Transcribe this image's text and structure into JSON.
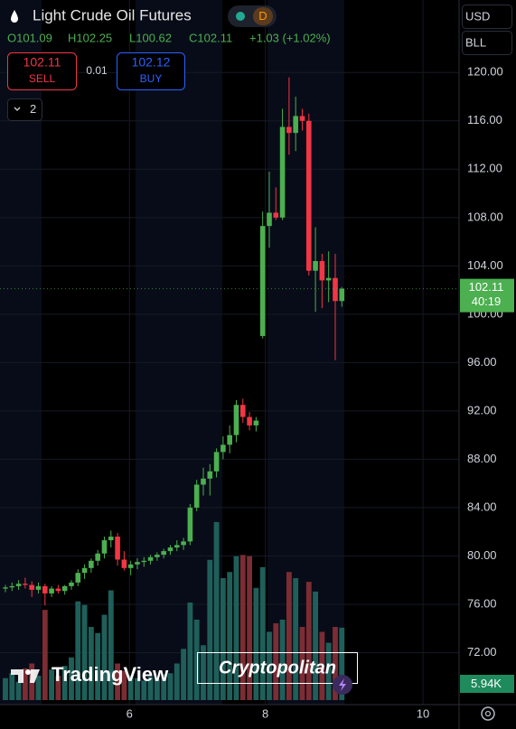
{
  "header": {
    "title": "Light Crude Oil Futures",
    "interval": "D",
    "ohlc": [
      "O101.09",
      "H102.25",
      "L100.62",
      "C102.11"
    ],
    "change": "+1.03 (+1.02%)"
  },
  "trade": {
    "sell_price": "102.11",
    "sell": "SELL",
    "spread": "0.01",
    "buy_price": "102.12",
    "buy": "BUY",
    "quantity": "2"
  },
  "axis": {
    "currency": "USD",
    "unit": "BLL",
    "countdown": "40:19"
  },
  "watermarks": [
    "TradingView",
    "Cryptopolitan"
  ],
  "chart_data": {
    "type": "candlestick",
    "up_color": "#4caf50",
    "down_color": "#f23645",
    "open": [
      77.3,
      77.4,
      77.5,
      77.7,
      77.6,
      77.2,
      77.5,
      76.9,
      77.3,
      77.1,
      77.5,
      77.8,
      78.6,
      79.0,
      79.6,
      80.2,
      81.3,
      81.6,
      79.7,
      79.0,
      79.3,
      79.5,
      79.6,
      79.9,
      80.1,
      80.4,
      80.7,
      80.9,
      81.2,
      84.0,
      85.9,
      86.4,
      87.0,
      88.6,
      89.2,
      90.0,
      92.5,
      91.5,
      90.8,
      98.2,
      107.3,
      108.4,
      108.0,
      115.5,
      115.0,
      116.4,
      116.0,
      103.6,
      104.4,
      102.8,
      103.0,
      101.09
    ],
    "high": [
      77.6,
      77.8,
      78.0,
      78.2,
      77.9,
      77.8,
      77.7,
      77.5,
      77.6,
      77.6,
      78.0,
      78.9,
      79.3,
      79.8,
      80.5,
      81.6,
      82.1,
      81.9,
      80.4,
      79.6,
      79.8,
      79.9,
      80.1,
      80.3,
      80.6,
      80.9,
      81.3,
      81.5,
      84.3,
      86.3,
      87.3,
      87.6,
      88.9,
      89.9,
      90.8,
      92.9,
      93.0,
      91.9,
      91.5,
      108.5,
      111.8,
      110.5,
      117.0,
      119.6,
      118.0,
      117.0,
      116.6,
      107.2,
      105.0,
      105.2,
      105.0,
      102.25
    ],
    "low": [
      77.0,
      77.1,
      77.2,
      77.3,
      76.6,
      76.9,
      75.9,
      76.6,
      76.9,
      76.8,
      77.2,
      77.5,
      78.1,
      78.6,
      79.2,
      79.8,
      80.7,
      79.2,
      78.8,
      78.4,
      78.9,
      79.1,
      79.3,
      79.6,
      79.8,
      80.1,
      80.4,
      80.5,
      80.9,
      83.7,
      85.0,
      85.0,
      86.5,
      88.0,
      88.5,
      89.4,
      91.0,
      90.4,
      90.3,
      98.0,
      105.5,
      107.8,
      107.8,
      113.2,
      113.5,
      115.2,
      103.2,
      100.2,
      100.5,
      101.0,
      96.2,
      100.62
    ],
    "close": [
      77.4,
      77.5,
      77.7,
      77.6,
      77.2,
      77.5,
      76.9,
      77.3,
      77.1,
      77.5,
      77.8,
      78.6,
      79.0,
      79.6,
      80.2,
      81.3,
      81.6,
      79.7,
      79.0,
      79.3,
      79.5,
      79.6,
      79.9,
      80.1,
      80.4,
      80.7,
      80.9,
      81.2,
      84.0,
      85.9,
      86.4,
      87.0,
      88.6,
      89.2,
      90.0,
      92.5,
      91.5,
      90.8,
      91.2,
      107.3,
      108.4,
      108.0,
      115.5,
      115.0,
      116.4,
      116.0,
      103.6,
      104.4,
      102.8,
      103.0,
      101.09,
      102.11
    ],
    "last_label": "102.11",
    "xlim": [
      -0.82,
      68.77
    ],
    "xticks": [
      {
        "value": 18.8,
        "label": "6"
      },
      {
        "value": 39.4,
        "label": "8"
      },
      {
        "value": 63.3,
        "label": "10"
      }
    ],
    "ylim": [
      67.7,
      126
    ],
    "yticks": [
      {
        "value": 72,
        "label": "72.00"
      },
      {
        "value": 76,
        "label": "76.00"
      },
      {
        "value": 80,
        "label": "80.00"
      },
      {
        "value": 84,
        "label": "84.00"
      },
      {
        "value": 88,
        "label": "88.00"
      },
      {
        "value": 92,
        "label": "92.00"
      },
      {
        "value": 96,
        "label": "96.00"
      },
      {
        "value": 100,
        "label": "100.00"
      },
      {
        "value": 104,
        "label": "104.00"
      },
      {
        "value": 108,
        "label": "108.00"
      },
      {
        "value": 112,
        "label": "112.00"
      },
      {
        "value": 116,
        "label": "116.00"
      },
      {
        "value": 120,
        "label": "120.00"
      }
    ],
    "grid": true,
    "volume": {
      "values": [
        1800,
        2200,
        1500,
        2600,
        3000,
        2000,
        7400,
        2500,
        2000,
        2800,
        3500,
        8100,
        7800,
        6000,
        5500,
        7000,
        9000,
        3000,
        2400,
        2000,
        1800,
        1600,
        1900,
        1700,
        2100,
        2200,
        3000,
        4200,
        8000,
        6600,
        4500,
        11500,
        14600,
        10000,
        10500,
        11800,
        11900,
        11800,
        9200,
        10900,
        5600,
        6300,
        6600,
        10500,
        10000,
        6000,
        9700,
        8900,
        5600,
        4700,
        6000,
        5940
      ],
      "ylim": [
        0,
        20000
      ],
      "last_label": "5.94K",
      "up_color": "#1f5f5a",
      "down_color": "#7c2c33"
    }
  }
}
